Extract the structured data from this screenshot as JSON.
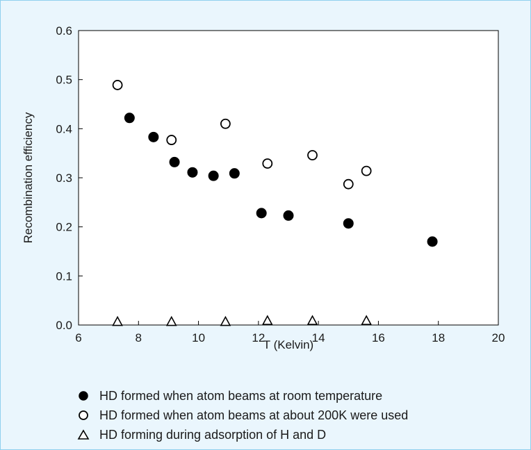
{
  "chart_data": {
    "type": "scatter",
    "xlabel": "T (Kelvin)",
    "ylabel": "Recombination efficiency",
    "xlim": [
      6,
      20
    ],
    "ylim": [
      0.0,
      0.6
    ],
    "x_ticks": [
      6,
      8,
      10,
      12,
      14,
      16,
      18,
      20
    ],
    "y_ticks": [
      0.0,
      0.1,
      0.2,
      0.3,
      0.4,
      0.5,
      0.6
    ],
    "x_tick_labels": [
      "6",
      "8",
      "10",
      "12",
      "14",
      "16",
      "18",
      "20"
    ],
    "y_tick_labels": [
      "0.0",
      "0.1",
      "0.2",
      "0.3",
      "0.4",
      "0.5",
      "0.6"
    ],
    "grid": false,
    "legend_position": "bottom",
    "series": [
      {
        "name": "HD formed when atom beams at room temperature",
        "marker": "filled-circle",
        "color": "#000000",
        "points": [
          {
            "x": 7.7,
            "y": 0.422
          },
          {
            "x": 8.5,
            "y": 0.383
          },
          {
            "x": 9.2,
            "y": 0.332
          },
          {
            "x": 9.8,
            "y": 0.311
          },
          {
            "x": 10.5,
            "y": 0.304
          },
          {
            "x": 11.2,
            "y": 0.309
          },
          {
            "x": 12.1,
            "y": 0.228
          },
          {
            "x": 13.0,
            "y": 0.223
          },
          {
            "x": 15.0,
            "y": 0.207
          },
          {
            "x": 17.8,
            "y": 0.17
          }
        ]
      },
      {
        "name": "HD formed when atom beams at about 200K were used",
        "marker": "open-circle",
        "color": "#000000",
        "points": [
          {
            "x": 7.3,
            "y": 0.489
          },
          {
            "x": 9.1,
            "y": 0.377
          },
          {
            "x": 10.9,
            "y": 0.41
          },
          {
            "x": 12.3,
            "y": 0.329
          },
          {
            "x": 13.8,
            "y": 0.346
          },
          {
            "x": 15.0,
            "y": 0.287
          },
          {
            "x": 15.6,
            "y": 0.314
          }
        ]
      },
      {
        "name": "HD forming during adsorption of H and D",
        "marker": "open-triangle",
        "color": "#000000",
        "points": [
          {
            "x": 7.3,
            "y": 0.007
          },
          {
            "x": 9.1,
            "y": 0.007
          },
          {
            "x": 10.9,
            "y": 0.007
          },
          {
            "x": 12.3,
            "y": 0.009
          },
          {
            "x": 13.8,
            "y": 0.009
          },
          {
            "x": 15.6,
            "y": 0.009
          }
        ]
      }
    ]
  }
}
